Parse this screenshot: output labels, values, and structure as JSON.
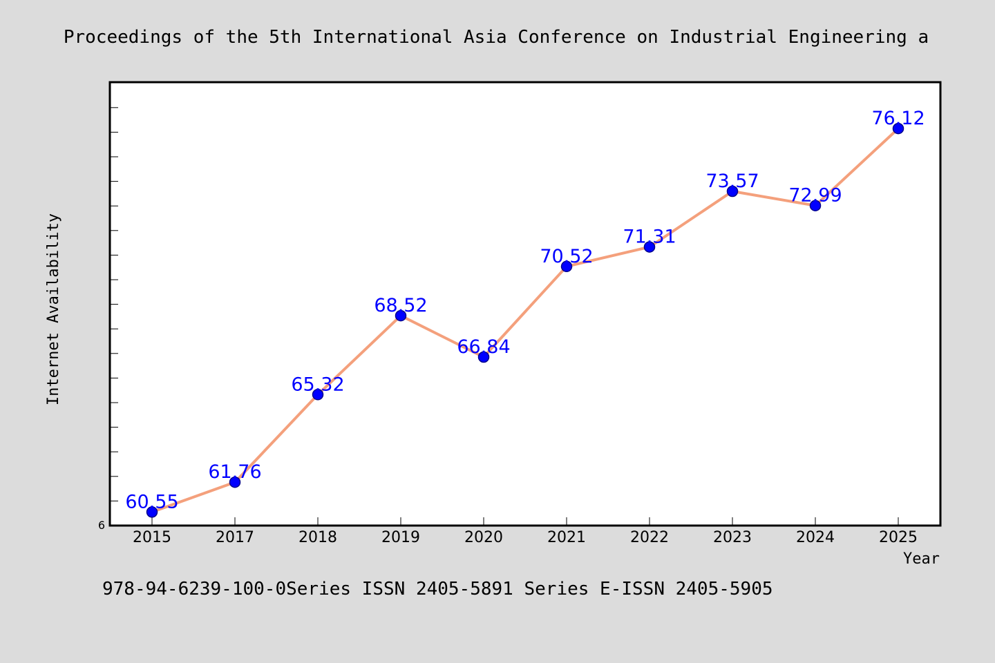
{
  "header": {
    "title": "Proceedings of the 5th International Asia Conference on Industrial Engineering a"
  },
  "footer": {
    "text": "978-94-6239-100-0Series ISSN 2405-5891 Series E-ISSN 2405-5905"
  },
  "colors": {
    "background": "#dcdcdc",
    "plot_background": "#ffffff",
    "line": "#f4a07c",
    "marker": "#0000ff",
    "marker_edge": "#00008b",
    "data_label": "#0000ff"
  },
  "chart_data": {
    "type": "line",
    "title": "Proceedings of the 5th International Asia Conference on Industrial Engineering a",
    "xlabel": "Year",
    "ylabel": "Internet Availability",
    "categories": [
      "2015",
      "2017",
      "2018",
      "2019",
      "2020",
      "2021",
      "2022",
      "2023",
      "2024",
      "2025"
    ],
    "series": [
      {
        "values": [
          60.55,
          61.76,
          65.32,
          68.52,
          66.84,
          70.52,
          71.31,
          73.57,
          72.99,
          76.12
        ]
      }
    ],
    "data_labels": [
      "60.55",
      "61.76",
      "65.32",
      "68.52",
      "66.84",
      "70.52",
      "71.31",
      "73.57",
      "72.99",
      "76.12"
    ],
    "ylim": [
      60,
      78
    ],
    "y_tick_labels": [
      "6"
    ],
    "grid": false,
    "legend": "none"
  }
}
